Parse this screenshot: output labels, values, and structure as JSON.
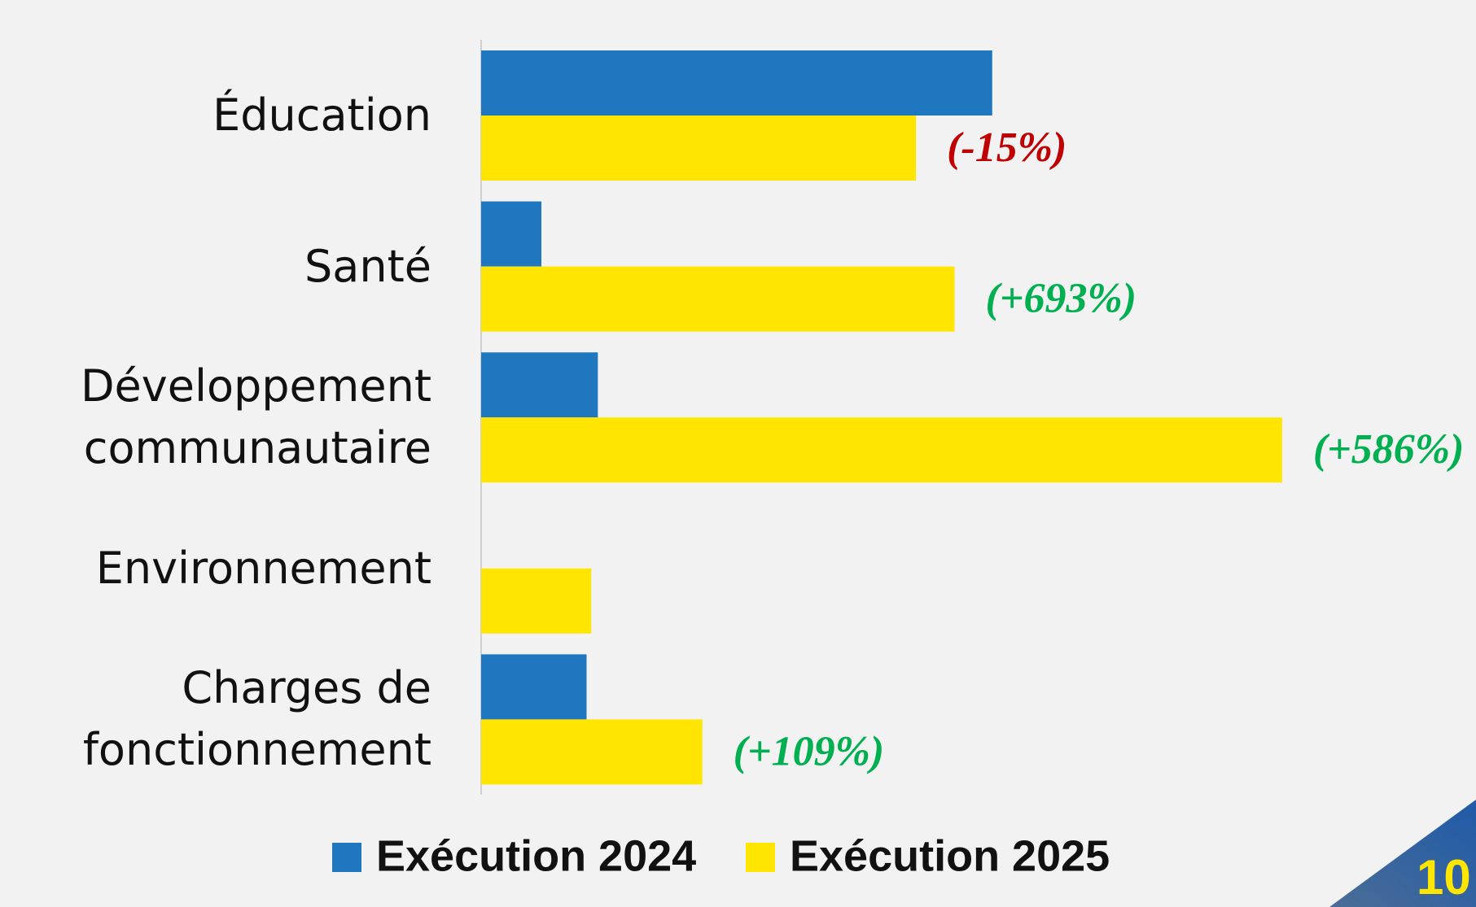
{
  "chart_data": {
    "type": "barh",
    "categories": [
      "Éducation",
      "Santé",
      "Développement communautaire",
      "Environnement",
      "Charges de fonctionnement"
    ],
    "series": [
      {
        "name": "Exécution 2024",
        "color": "#1f77c0",
        "values": [
          543,
          64,
          124,
          null,
          112
        ]
      },
      {
        "name": "Exécution 2025",
        "color": "#ffe500",
        "values": [
          462,
          503,
          851,
          117,
          235
        ]
      }
    ],
    "annotations": [
      "(-15%)",
      "(+693%)",
      "(+586%)",
      null,
      "(+109%)"
    ],
    "annotation_colors": [
      "#c00000",
      "#00b050",
      "#00b050",
      null,
      "#00b050"
    ],
    "xlim": [
      0,
      1057
    ],
    "legend": "bottom",
    "page_number": "10"
  }
}
